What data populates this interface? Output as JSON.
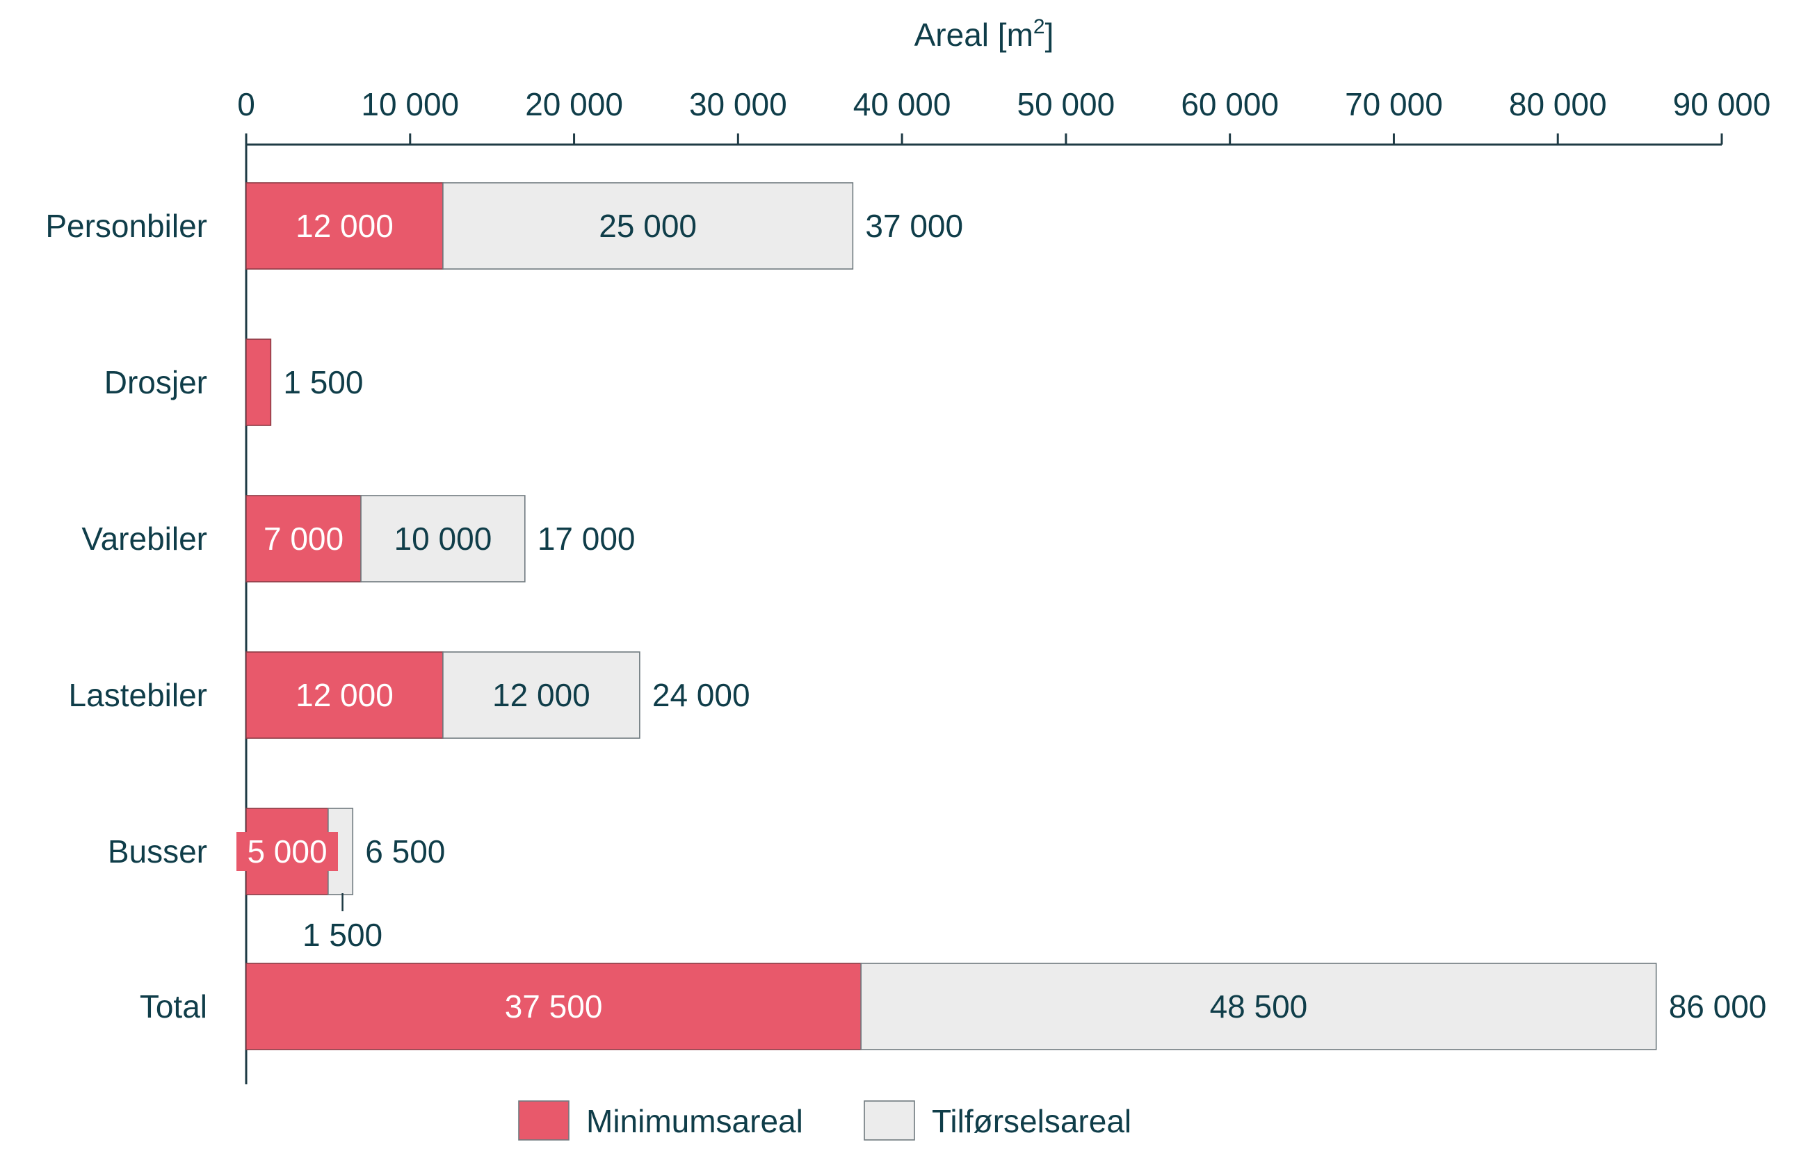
{
  "chart_data": {
    "type": "bar",
    "orientation": "horizontal",
    "stacked": true,
    "xlabel": "Areal [m",
    "xlabel_superscript": "2",
    "xlabel_close": "]",
    "xlim": [
      0,
      90000
    ],
    "x_ticks": [
      0,
      10000,
      20000,
      30000,
      40000,
      50000,
      60000,
      70000,
      80000,
      90000
    ],
    "x_tick_labels": [
      "0",
      "10 000",
      "20 000",
      "30 000",
      "40 000",
      "50 000",
      "60 000",
      "70 000",
      "80 000",
      "90 000"
    ],
    "categories": [
      "Personbiler",
      "Drosjer",
      "Varebiler",
      "Lastebiler",
      "Busser",
      "Total"
    ],
    "series": [
      {
        "name": "Minimumsareal",
        "color": "#e8596b",
        "values": [
          12000,
          1500,
          7000,
          12000,
          5000,
          37500
        ],
        "labels": [
          "12 000",
          "",
          "7 000",
          "12 000",
          "5 000",
          "37 500"
        ]
      },
      {
        "name": "Tilførselsareal",
        "color": "#ececec",
        "values": [
          25000,
          0,
          10000,
          12000,
          1500,
          48500
        ],
        "labels": [
          "25 000",
          "",
          "10 000",
          "12 000",
          "1 500",
          "48 500"
        ]
      }
    ],
    "totals": [
      37000,
      1500,
      17000,
      24000,
      6500,
      86000
    ],
    "total_labels": [
      "37 000",
      "1 500",
      "17 000",
      "24 000",
      "6 500",
      "86 000"
    ],
    "legend_position": "bottom",
    "grid": false
  }
}
